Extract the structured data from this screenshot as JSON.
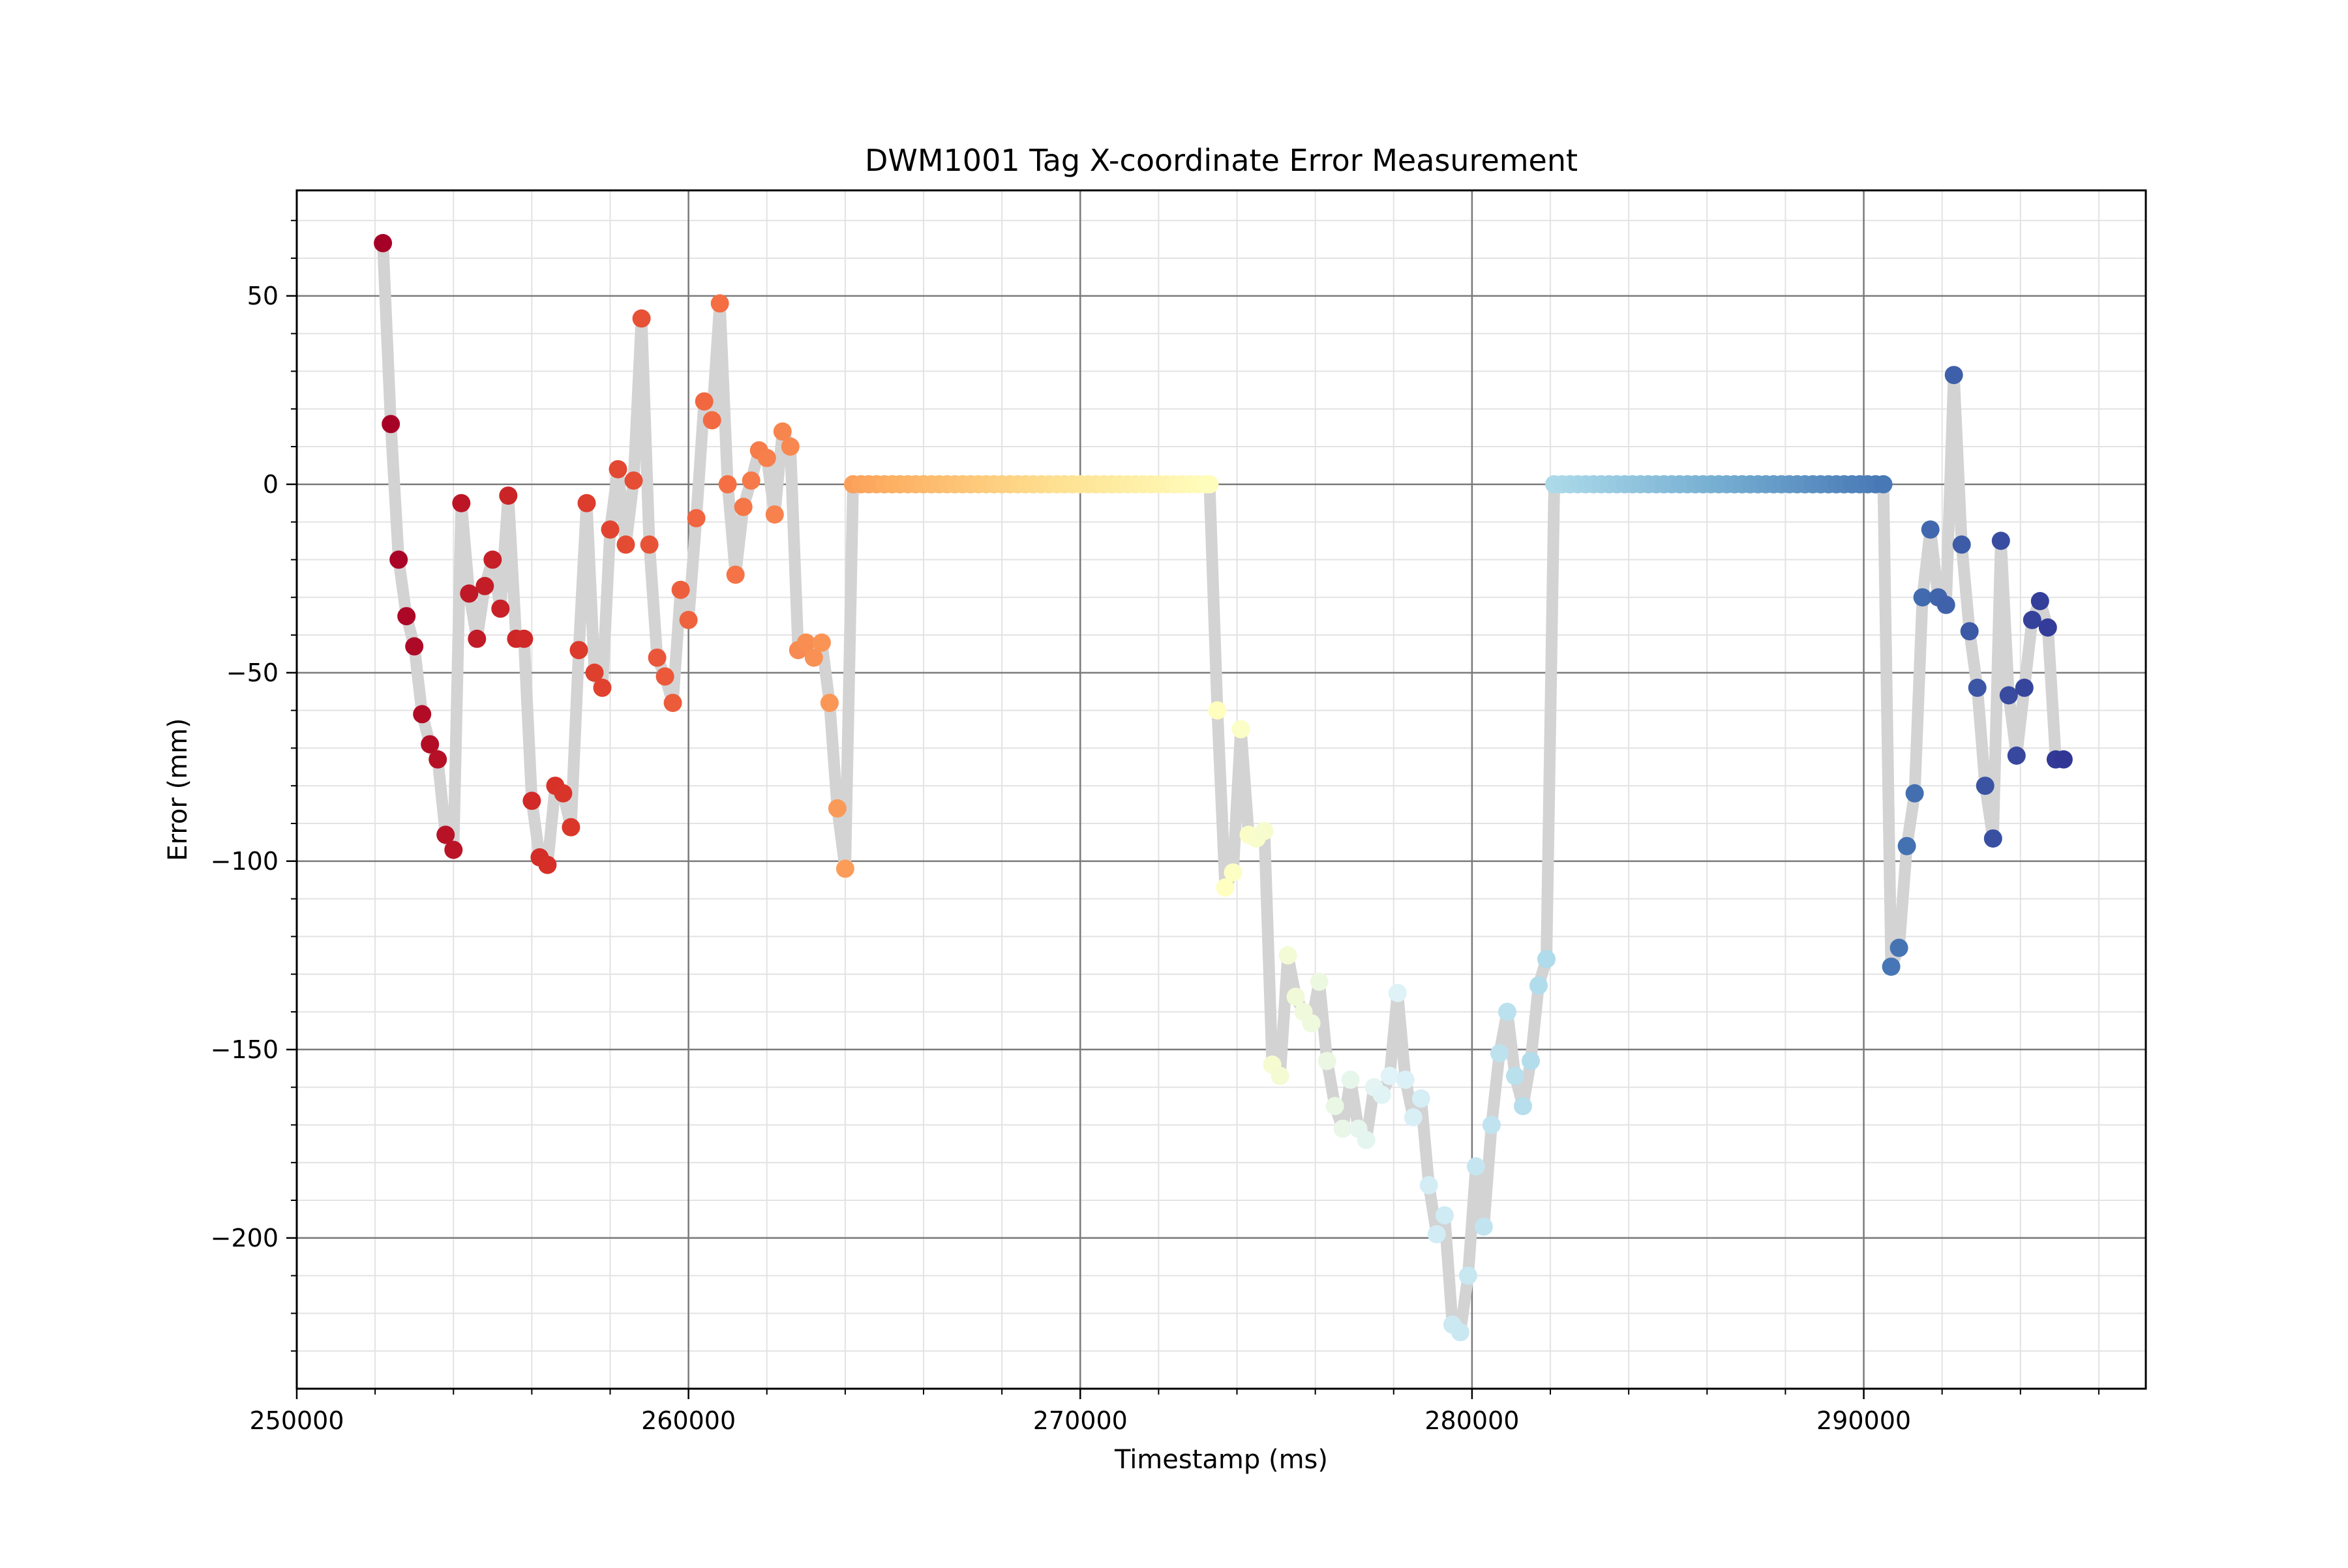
{
  "chart_data": {
    "type": "scatter",
    "title": "DWM1001 Tag X-coordinate Error Measurement",
    "xlabel": "Timestamp (ms)",
    "ylabel": "Error (mm)",
    "xlim": [
      250000,
      297200
    ],
    "ylim": [
      -240,
      78
    ],
    "x_ticks": [
      250000,
      260000,
      270000,
      280000,
      290000
    ],
    "x_tick_labels": [
      "250000",
      "260000",
      "270000",
      "280000",
      "290000"
    ],
    "y_ticks": [
      50,
      0,
      -50,
      -100,
      -150,
      -200
    ],
    "y_tick_labels": [
      "50",
      "0",
      "−50",
      "−100",
      "−150",
      "−200"
    ],
    "grid": {
      "major": true,
      "minor": true
    },
    "legend": "none",
    "line_color": "#d3d3d3",
    "point_colormap": "RdYlBu (ordered by sample index)",
    "series": [
      {
        "x": [
          252200,
          252400,
          252600,
          252800,
          253000,
          253200,
          253400,
          253600,
          253800,
          254000,
          254200,
          254400,
          254600,
          254800,
          255000,
          255200,
          255400,
          255600,
          255800,
          256000,
          256200,
          256400,
          256600,
          256800,
          257000,
          257200,
          257400,
          257600,
          257800,
          258000,
          258200,
          258400,
          258600,
          258800,
          259000,
          259200,
          259400,
          259600,
          259800,
          260000,
          260200,
          260400,
          260600,
          260800,
          261000,
          261200,
          261400,
          261600,
          261800,
          262000,
          262200,
          262400,
          262600,
          262800,
          263000,
          263200,
          263400,
          263600,
          263800,
          264000,
          264200,
          273300,
          273500,
          273700,
          273900,
          274100,
          274300,
          274500,
          274700,
          274900,
          275100,
          275300,
          275500,
          275700,
          275900,
          276100,
          276300,
          276500,
          276700,
          276900,
          277100,
          277300,
          277500,
          277700,
          277900,
          278100,
          278300,
          278500,
          278700,
          278900,
          279100,
          279300,
          279500,
          279700,
          279900,
          280100,
          280300,
          280500,
          280700,
          280900,
          281100,
          281300,
          281500,
          281700,
          281900,
          282100,
          290500,
          290700,
          290900,
          291100,
          291300,
          291500,
          291700,
          291900,
          292100,
          292300,
          292500,
          292700,
          292900,
          293100,
          293300,
          293500,
          293700,
          293900,
          294100,
          294300,
          294500,
          294700,
          294900,
          295100
        ],
        "y": [
          64,
          16,
          -20,
          -35,
          -43,
          -61,
          -69,
          -73,
          -93,
          -97,
          -5,
          -29,
          -41,
          -27,
          -20,
          -33,
          -3,
          -41,
          -41,
          -84,
          -99,
          -101,
          -80,
          -82,
          -91,
          -44,
          -5,
          -50,
          -54,
          -12,
          4,
          -16,
          1,
          44,
          -16,
          -46,
          -51,
          -58,
          -28,
          -36,
          -9,
          22,
          17,
          48,
          0,
          -24,
          -6,
          1,
          9,
          7,
          -8,
          14,
          10,
          -44,
          -42,
          -46,
          -42,
          -58,
          -86,
          -102,
          0,
          0,
          -60,
          -107,
          -103,
          -65,
          -93,
          -94,
          -92,
          -154,
          -157,
          -125,
          -136,
          -140,
          -143,
          -132,
          -153,
          -165,
          -171,
          -158,
          -171,
          -174,
          -160,
          -162,
          -157,
          -135,
          -158,
          -168,
          -163,
          -186,
          -199,
          -194,
          -223,
          -225,
          -210,
          -181,
          -197,
          -170,
          -151,
          -140,
          -157,
          -165,
          -153,
          -133,
          -126,
          0,
          0,
          -128,
          -123,
          -96,
          -82,
          -30,
          -12,
          -30,
          -32,
          29,
          -16,
          -39,
          -54,
          -80,
          -94,
          -15,
          -56,
          -72,
          -54,
          -36,
          -31,
          -38,
          -73,
          -73
        ],
        "flat_segments": [
          {
            "x_start": 264200,
            "x_end": 273300,
            "y": 0
          },
          {
            "x_start": 282100,
            "x_end": 290500,
            "y": 0
          }
        ]
      }
    ]
  }
}
